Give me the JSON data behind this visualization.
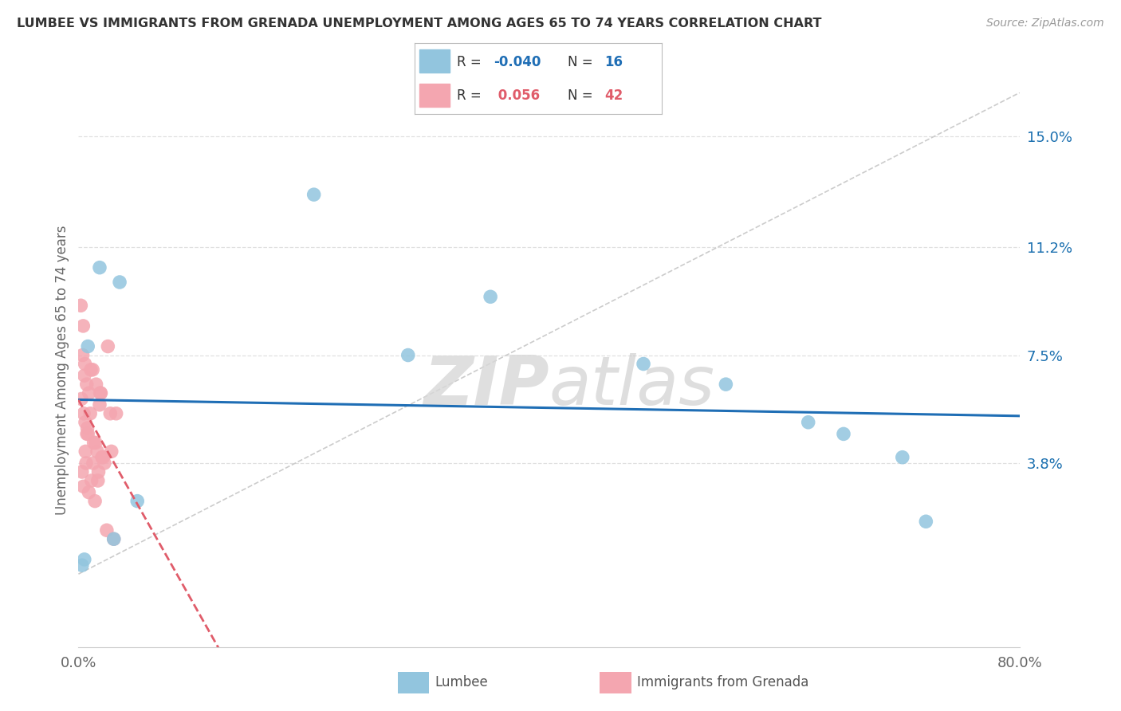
{
  "title": "LUMBEE VS IMMIGRANTS FROM GRENADA UNEMPLOYMENT AMONG AGES 65 TO 74 YEARS CORRELATION CHART",
  "source": "Source: ZipAtlas.com",
  "ylabel": "Unemployment Among Ages 65 to 74 years",
  "xmin": 0.0,
  "xmax": 80.0,
  "ymin": -2.5,
  "ymax": 16.5,
  "ytick_vals": [
    3.8,
    7.5,
    11.2,
    15.0
  ],
  "ytick_labels": [
    "3.8%",
    "7.5%",
    "11.2%",
    "15.0%"
  ],
  "lumbee_R": -0.04,
  "lumbee_N": 16,
  "grenada_R": 0.056,
  "grenada_N": 42,
  "lumbee_color": "#92c5de",
  "grenada_color": "#f4a6b0",
  "lumbee_line_color": "#1f6eb5",
  "grenada_line_color": "#e05c6a",
  "ref_line_color": "#cccccc",
  "background": "#ffffff",
  "lumbee_x": [
    0.3,
    0.5,
    1.8,
    3.5,
    20.0,
    35.0,
    48.0,
    55.0,
    62.0,
    65.0,
    70.0,
    72.0,
    3.0,
    5.0,
    28.0,
    0.8
  ],
  "lumbee_y": [
    0.3,
    0.5,
    10.5,
    10.0,
    13.0,
    9.5,
    7.2,
    6.5,
    5.2,
    4.8,
    4.0,
    1.8,
    1.2,
    2.5,
    7.5,
    7.8
  ],
  "grenada_x": [
    0.2,
    0.3,
    0.35,
    0.4,
    0.45,
    0.5,
    0.55,
    0.6,
    0.65,
    0.7,
    0.75,
    0.8,
    0.9,
    1.0,
    1.1,
    1.2,
    1.3,
    1.4,
    1.5,
    1.6,
    1.7,
    1.8,
    1.9,
    2.0,
    2.2,
    2.5,
    2.8,
    3.0,
    3.2,
    0.25,
    0.42,
    0.58,
    0.72,
    0.88,
    1.05,
    1.25,
    1.45,
    1.65,
    1.85,
    2.1,
    2.4,
    2.7
  ],
  "grenada_y": [
    9.2,
    3.5,
    7.5,
    8.5,
    5.5,
    6.8,
    7.2,
    4.2,
    3.8,
    6.5,
    5.0,
    4.8,
    6.2,
    5.5,
    3.2,
    7.0,
    4.5,
    2.5,
    6.5,
    4.2,
    3.5,
    5.8,
    6.2,
    4.0,
    3.8,
    7.8,
    4.2,
    1.2,
    5.5,
    6.0,
    3.0,
    5.2,
    4.8,
    2.8,
    7.0,
    3.8,
    4.5,
    3.2,
    6.2,
    4.0,
    1.5,
    5.5
  ],
  "legend_R_lumbee_color": "#1a6faf",
  "legend_R_grenada_color": "#e05c6a",
  "legend_N_color": "#1a6faf"
}
